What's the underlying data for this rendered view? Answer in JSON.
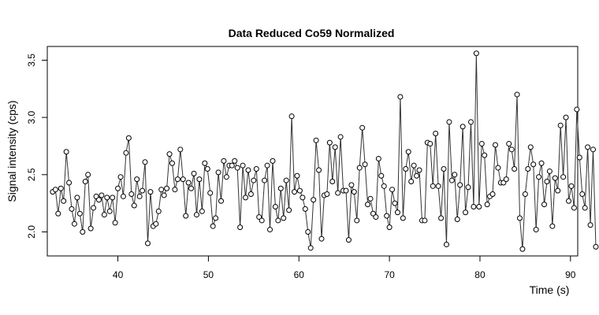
{
  "chart_data": {
    "type": "line",
    "title": "Data Reduced Co59 Normalized",
    "xlabel": "Time (s)",
    "ylabel": "Signal intensity (cps)",
    "xlim": [
      32.2,
      90.8
    ],
    "ylim": [
      1.79,
      3.62
    ],
    "x_ticks": [
      40,
      50,
      60,
      70,
      80,
      90
    ],
    "y_ticks": [
      2.0,
      2.5,
      3.0,
      3.5
    ],
    "grid": false,
    "legend": "none",
    "point_style": "open-circle",
    "colors": {
      "line": "#333333",
      "point": "#000000",
      "axis": "#000000"
    },
    "x_start": 32.8,
    "x_step": 0.3,
    "values": [
      2.35,
      2.37,
      2.16,
      2.38,
      2.27,
      2.7,
      2.43,
      2.2,
      2.07,
      2.3,
      2.16,
      2.0,
      2.44,
      2.5,
      2.03,
      2.21,
      2.31,
      2.28,
      2.32,
      2.15,
      2.3,
      2.18,
      2.3,
      2.08,
      2.38,
      2.48,
      2.31,
      2.69,
      2.82,
      2.33,
      2.23,
      2.46,
      2.31,
      2.36,
      2.61,
      1.9,
      2.35,
      2.05,
      2.07,
      2.18,
      2.37,
      2.32,
      2.38,
      2.68,
      2.6,
      2.37,
      2.46,
      2.72,
      2.46,
      2.14,
      2.43,
      2.38,
      2.51,
      2.15,
      2.46,
      2.18,
      2.6,
      2.55,
      2.34,
      2.05,
      2.12,
      2.52,
      2.27,
      2.62,
      2.48,
      2.58,
      2.58,
      2.62,
      2.56,
      2.04,
      2.58,
      2.3,
      2.54,
      2.33,
      2.45,
      2.55,
      2.13,
      2.1,
      2.45,
      2.58,
      2.02,
      2.62,
      2.22,
      2.1,
      2.38,
      2.12,
      2.45,
      2.19,
      3.01,
      2.35,
      2.49,
      2.36,
      2.3,
      2.2,
      2.0,
      1.86,
      2.28,
      2.8,
      2.54,
      1.94,
      2.32,
      2.33,
      2.78,
      2.44,
      2.74,
      2.34,
      2.83,
      2.36,
      2.36,
      1.93,
      2.41,
      2.35,
      2.1,
      2.56,
      2.91,
      2.59,
      2.24,
      2.29,
      2.16,
      2.13,
      2.64,
      2.49,
      2.4,
      2.14,
      2.04,
      2.37,
      2.25,
      2.17,
      3.18,
      2.12,
      2.55,
      2.7,
      2.44,
      2.58,
      2.49,
      2.54,
      2.1,
      2.1,
      2.78,
      2.77,
      2.4,
      2.86,
      2.4,
      2.12,
      2.55,
      1.89,
      2.96,
      2.45,
      2.5,
      2.11,
      2.41,
      2.92,
      2.17,
      2.39,
      2.96,
      2.22,
      3.56,
      2.22,
      2.77,
      2.67,
      2.24,
      2.31,
      2.33,
      2.76,
      2.56,
      2.43,
      2.43,
      2.46,
      2.77,
      2.72,
      2.55,
      3.2,
      2.12,
      1.85,
      2.33,
      2.55,
      2.74,
      2.59,
      2.02,
      2.48,
      2.6,
      2.24,
      2.44,
      2.53,
      2.05,
      2.47,
      2.36,
      2.93,
      2.48,
      3.0,
      2.27,
      2.4,
      2.21,
      3.07,
      2.65,
      2.33,
      2.21,
      2.74,
      2.06,
      2.72,
      1.87
    ]
  }
}
